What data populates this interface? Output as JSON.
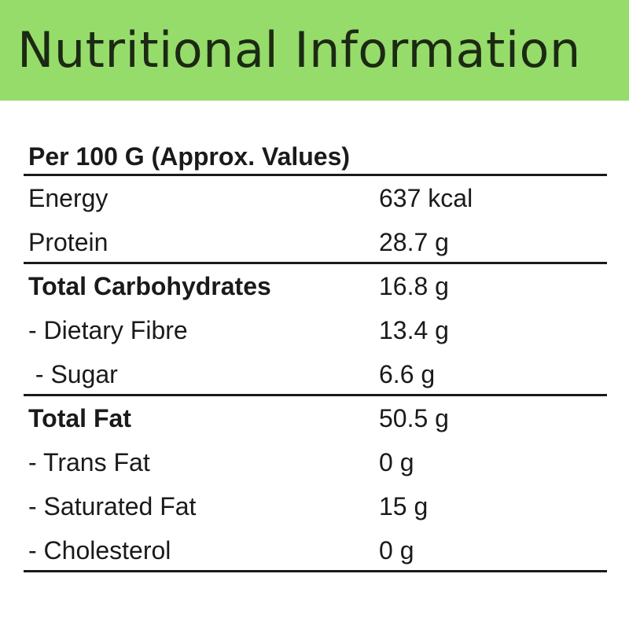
{
  "title": "Nutritional Information",
  "table": {
    "header": "Per 100 G (Approx. Values)",
    "rows": [
      {
        "label": "Energy",
        "value": "637 kcal",
        "bold": false,
        "group_end": false
      },
      {
        "label": "Protein",
        "value": "28.7 g",
        "bold": false,
        "group_end": true
      },
      {
        "label": "Total Carbohydrates",
        "value": "16.8 g",
        "bold": true,
        "group_end": false
      },
      {
        "label": "- Dietary Fibre",
        "value": "13.4 g",
        "bold": false,
        "group_end": false
      },
      {
        "label": " - Sugar",
        "value": "6.6 g",
        "bold": false,
        "group_end": true
      },
      {
        "label": "Total Fat",
        "value": "50.5 g",
        "bold": true,
        "group_end": false
      },
      {
        "label": "- Trans Fat",
        "value": "0 g",
        "bold": false,
        "group_end": false
      },
      {
        "label": "- Saturated Fat",
        "value": "15 g",
        "bold": false,
        "group_end": false
      },
      {
        "label": "- Cholesterol",
        "value": "0 g",
        "bold": false,
        "group_end": true
      }
    ]
  }
}
